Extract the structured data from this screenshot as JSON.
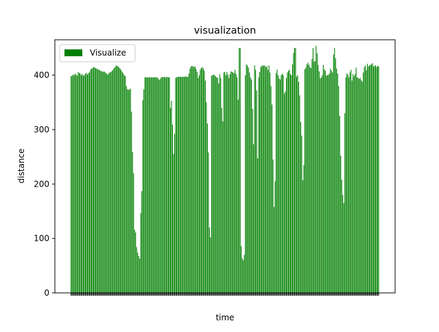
{
  "chart_data": {
    "type": "bar",
    "title": "visualization",
    "xlabel": "time",
    "ylabel": "distance",
    "ylim": [
      0,
      465
    ],
    "yticks": [
      0,
      100,
      200,
      300,
      400
    ],
    "legend": {
      "placement": "top-left",
      "entries": [
        "Visualize"
      ]
    },
    "grid": false,
    "bar_color": "#008000",
    "series": [
      {
        "name": "Visualize",
        "values": [
          398,
          399,
          401,
          400,
          403,
          401,
          399,
          406,
          404,
          403,
          400,
          402,
          399,
          400,
          403,
          404,
          401,
          404,
          405,
          410,
          412,
          413,
          415,
          414,
          413,
          412,
          411,
          410,
          409,
          408,
          407,
          406,
          407,
          406,
          404,
          402,
          401,
          404,
          405,
          406,
          408,
          410,
          413,
          415,
          418,
          417,
          416,
          414,
          412,
          409,
          406,
          403,
          400,
          398,
          380,
          374,
          373,
          374,
          375,
          333,
          259,
          220,
          116,
          111,
          84,
          74,
          68,
          63,
          147,
          187,
          354,
          374,
          396,
          396,
          396,
          396,
          396,
          396,
          396,
          396,
          396,
          396,
          396,
          396,
          396,
          394,
          391,
          393,
          396,
          397,
          396,
          397,
          396,
          396,
          397,
          396,
          396,
          340,
          353,
          309,
          255,
          292,
          395,
          396,
          397,
          397,
          397,
          397,
          397,
          397,
          397,
          397,
          398,
          397,
          397,
          403,
          412,
          416,
          417,
          416,
          415,
          416,
          411,
          406,
          395,
          400,
          410,
          413,
          415,
          412,
          408,
          390,
          350,
          311,
          258,
          120,
          102,
          399,
          400,
          401,
          400,
          398,
          396,
          395,
          385,
          402,
          395,
          340,
          315,
          405,
          406,
          400,
          406,
          401,
          395,
          402,
          407,
          406,
          405,
          404,
          410,
          402,
          396,
          355,
          450,
          450,
          86,
          64,
          60,
          70,
          400,
          420,
          418,
          414,
          405,
          396,
          392,
          338,
          273,
          418,
          410,
          372,
          247,
          396,
          406,
          415,
          417,
          418,
          417,
          418,
          415,
          416,
          410,
          418,
          405,
          380,
          346,
          245,
          158,
          205,
          404,
          410,
          400,
          394,
          392,
          400,
          403,
          400,
          366,
          370,
          395,
          405,
          408,
          410,
          402,
          400,
          420,
          441,
          450,
          450,
          397,
          400,
          388,
          363,
          314,
          289,
          207,
          235,
          411,
          414,
          420,
          423,
          419,
          415,
          413,
          430,
          450,
          425,
          426,
          454,
          440,
          419,
          407,
          394,
          396,
          400,
          419,
          411,
          408,
          399,
          400,
          401,
          403,
          412,
          408,
          405,
          438,
          450,
          431,
          412,
          403,
          380,
          325,
          252,
          208,
          180,
          165,
          330,
          396,
          403,
          401,
          396,
          405,
          410,
          390,
          402,
          398,
          402,
          414,
          396,
          395,
          393,
          395,
          391,
          388,
          405,
          415,
          418,
          409,
          421,
          416,
          418,
          419,
          420,
          422,
          416,
          417,
          418,
          415,
          417,
          416
        ]
      }
    ]
  }
}
